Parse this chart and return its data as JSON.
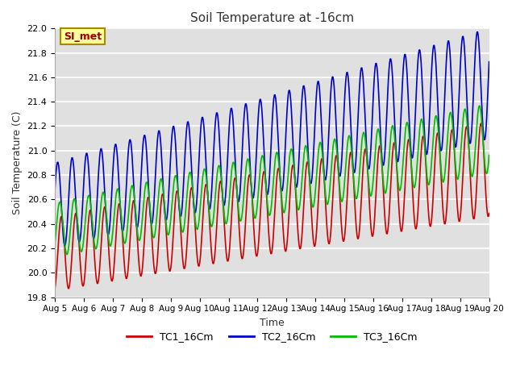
{
  "title": "Soil Temperature at -16cm",
  "xlabel": "Time",
  "ylabel": "Soil Temperature (C)",
  "ylim": [
    19.8,
    22.0
  ],
  "xlim": [
    0,
    360
  ],
  "background_color": "#ffffff",
  "plot_bg_color": "#e0e0e0",
  "grid_color": "#ffffff",
  "tc1_color": "#cc0000",
  "tc2_color": "#0000cc",
  "tc3_color": "#00bb00",
  "annotation_text": "SI_met",
  "annotation_bg": "#ffff99",
  "annotation_border": "#aa8800",
  "x_tick_labels": [
    "Aug 5",
    "Aug 6",
    "Aug 7",
    "Aug 8",
    "Aug 9",
    "Aug 10",
    "Aug 11",
    "Aug 12",
    "Aug 13",
    "Aug 14",
    "Aug 15",
    "Aug 16",
    "Aug 17",
    "Aug 18",
    "Aug 19",
    "Aug 20"
  ],
  "x_tick_positions": [
    0,
    24,
    48,
    72,
    96,
    120,
    144,
    168,
    192,
    216,
    240,
    264,
    288,
    312,
    336,
    360
  ],
  "tc1_base_start": 20.15,
  "tc1_base_end": 20.85,
  "tc2_base_start": 20.55,
  "tc2_base_end": 21.55,
  "tc3_base_start": 20.35,
  "tc3_base_end": 21.1,
  "tc1_amp": 0.3,
  "tc2_amp": 0.35,
  "tc3_amp": 0.22,
  "period_hours": 12.0,
  "tc1_phase": -1.2,
  "tc2_phase": 0.4,
  "tc3_phase": -0.5
}
